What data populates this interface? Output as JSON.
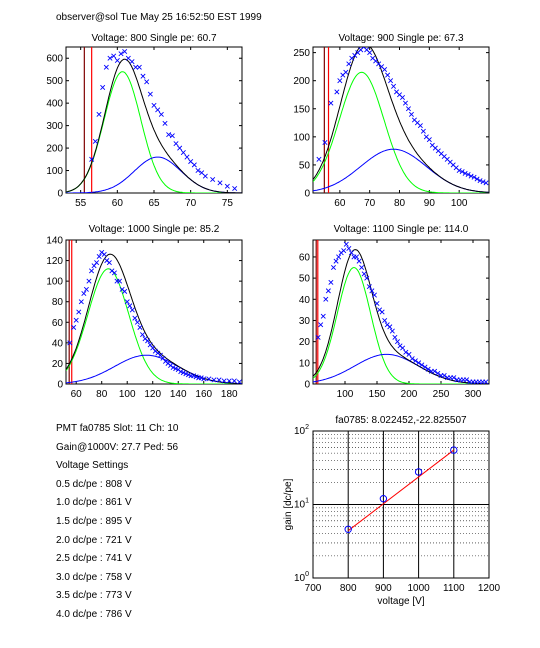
{
  "header": "observer@sol  Tue May 25 16:52:50 EST 1999",
  "info": {
    "pmt_line": "PMT fa0785 Slot: 11 Ch: 10",
    "gain_line": "Gain@1000V: 27.7 Ped: 56",
    "settings_title": "Voltage Settings",
    "settings": [
      "0.5 dc/pe : 808 V",
      "1.0 dc/pe : 861 V",
      "1.5 dc/pe : 895 V",
      "2.0 dc/pe : 721 V",
      "2.5 dc/pe : 741 V",
      "3.0 dc/pe : 758 V",
      "3.5 dc/pe : 773 V",
      "4.0 dc/pe : 786 V"
    ]
  },
  "colors": {
    "data": "#0000ff",
    "fit_total": "#000000",
    "fit_single": "#00ff00",
    "fit_double": "#0000ff",
    "pedestal": "#ff0000",
    "pedestal_dark": "#800000",
    "gain_line": "#ff0000"
  },
  "chart_data": [
    {
      "type": "scatter",
      "title": "Voltage: 800 Single pe: 60.7",
      "xlim": [
        53,
        77
      ],
      "ylim": [
        0,
        650
      ],
      "xticks": [
        55,
        60,
        65,
        70,
        75
      ],
      "yticks": [
        0,
        100,
        200,
        300,
        400,
        500,
        600
      ],
      "pedestal_x": 56,
      "ped_lines": [
        55.5,
        56.5
      ],
      "gauss1": {
        "a": 540,
        "mu": 60.7,
        "s": 2.5
      },
      "gauss2": {
        "a": 160,
        "mu": 65.5,
        "s": 3.2
      },
      "x": [
        56.5,
        57,
        57.5,
        58,
        58.5,
        59,
        59.5,
        60,
        60.5,
        61,
        61.5,
        62,
        62.5,
        63,
        63.5,
        64,
        64.5,
        65,
        65.5,
        66,
        66.5,
        67,
        67.5,
        68,
        68.5,
        69,
        69.5,
        70,
        70.5,
        71,
        71.5,
        72,
        73,
        74,
        75,
        76
      ],
      "y": [
        150,
        230,
        350,
        470,
        560,
        600,
        610,
        590,
        620,
        630,
        600,
        585,
        560,
        560,
        520,
        495,
        440,
        390,
        370,
        350,
        310,
        260,
        255,
        220,
        200,
        180,
        160,
        140,
        125,
        100,
        90,
        75,
        60,
        45,
        30,
        20
      ]
    },
    {
      "type": "scatter",
      "title": "Voltage: 900 Single pe: 67.3",
      "xlim": [
        51,
        110
      ],
      "ylim": [
        0,
        260
      ],
      "xticks": [
        60,
        70,
        80,
        90,
        100
      ],
      "yticks": [
        0,
        50,
        100,
        150,
        200,
        250
      ],
      "pedestal_x": 56,
      "ped_lines": [
        54.8,
        56.2
      ],
      "gauss1": {
        "a": 215,
        "mu": 67.3,
        "s": 7.5
      },
      "gauss2": {
        "a": 78,
        "mu": 78,
        "s": 11
      },
      "x": [
        53,
        55,
        57,
        59,
        60,
        61,
        62,
        63,
        64,
        65,
        66,
        67,
        68,
        69,
        70,
        71,
        72,
        73,
        74,
        75,
        76,
        77,
        78,
        79,
        80,
        81,
        82,
        83,
        84,
        85,
        86,
        87,
        88,
        89,
        90,
        91,
        92,
        93,
        94,
        95,
        96,
        97,
        98,
        99,
        100,
        101,
        102,
        103,
        104,
        105,
        106,
        107,
        108,
        109
      ],
      "y": [
        60,
        90,
        160,
        180,
        200,
        210,
        215,
        230,
        240,
        245,
        250,
        255,
        260,
        255,
        250,
        240,
        235,
        230,
        225,
        220,
        210,
        200,
        190,
        180,
        175,
        170,
        160,
        150,
        140,
        130,
        125,
        120,
        110,
        100,
        95,
        85,
        80,
        75,
        70,
        65,
        60,
        55,
        50,
        45,
        40,
        38,
        35,
        33,
        30,
        28,
        25,
        22,
        20,
        18
      ]
    },
    {
      "type": "scatter",
      "title": "Voltage: 1000 Single pe: 85.2",
      "xlim": [
        52,
        190
      ],
      "ylim": [
        0,
        140
      ],
      "xticks": [
        60,
        80,
        100,
        120,
        140,
        160,
        180
      ],
      "yticks": [
        0,
        20,
        40,
        60,
        80,
        100,
        120,
        140
      ],
      "pedestal_x": 56,
      "ped_lines": [
        54.5,
        56.5
      ],
      "gauss1": {
        "a": 112,
        "mu": 85.2,
        "s": 16
      },
      "gauss2": {
        "a": 28,
        "mu": 115,
        "s": 25
      },
      "x": [
        55,
        58,
        60,
        62,
        64,
        66,
        68,
        70,
        72,
        74,
        76,
        78,
        80,
        82,
        84,
        86,
        88,
        90,
        92,
        94,
        96,
        98,
        100,
        102,
        104,
        106,
        108,
        110,
        112,
        114,
        116,
        118,
        120,
        122,
        124,
        126,
        128,
        130,
        132,
        134,
        136,
        138,
        140,
        142,
        144,
        146,
        148,
        150,
        152,
        154,
        156,
        158,
        160,
        164,
        168,
        172,
        176,
        180,
        184,
        188
      ],
      "y": [
        40,
        55,
        62,
        70,
        80,
        88,
        92,
        100,
        110,
        115,
        118,
        124,
        128,
        126,
        120,
        118,
        110,
        108,
        100,
        100,
        92,
        90,
        80,
        76,
        72,
        64,
        60,
        55,
        48,
        44,
        42,
        38,
        35,
        32,
        30,
        28,
        25,
        22,
        20,
        18,
        16,
        15,
        14,
        12,
        11,
        10,
        9,
        8,
        8,
        7,
        6,
        6,
        5,
        5,
        4,
        4,
        3,
        3,
        3,
        2
      ]
    },
    {
      "type": "scatter",
      "title": "Voltage: 1100 Single pe: 114.0",
      "xlim": [
        50,
        325
      ],
      "ylim": [
        0,
        68
      ],
      "xticks": [
        100,
        150,
        200,
        250,
        300
      ],
      "yticks": [
        0,
        10,
        20,
        30,
        40,
        50,
        60
      ],
      "pedestal_x": 56,
      "ped_lines": [
        55,
        57.5
      ],
      "gauss1": {
        "a": 55,
        "mu": 114,
        "s": 26
      },
      "gauss2": {
        "a": 14,
        "mu": 165,
        "s": 50
      },
      "x": [
        58,
        62,
        66,
        70,
        74,
        78,
        82,
        86,
        90,
        94,
        98,
        102,
        106,
        110,
        114,
        118,
        122,
        126,
        130,
        134,
        138,
        142,
        146,
        150,
        154,
        158,
        162,
        166,
        170,
        174,
        178,
        182,
        186,
        190,
        195,
        200,
        205,
        210,
        215,
        220,
        225,
        230,
        235,
        240,
        245,
        250,
        255,
        260,
        265,
        270,
        275,
        280,
        285,
        290,
        295,
        300,
        305,
        310,
        315,
        320
      ],
      "y": [
        22,
        28,
        32,
        40,
        44,
        48,
        55,
        58,
        60,
        62,
        63,
        66,
        64,
        62,
        60,
        60,
        58,
        55,
        52,
        50,
        46,
        44,
        42,
        38,
        35,
        34,
        30,
        28,
        27,
        25,
        22,
        20,
        18,
        17,
        15,
        14,
        12,
        11,
        10,
        9,
        8,
        7,
        6,
        6,
        5,
        4,
        4,
        3,
        3,
        3,
        2,
        2,
        2,
        2,
        1,
        1,
        1,
        1,
        1,
        1
      ]
    },
    {
      "type": "line",
      "title": "fa0785: 8.022452,-22.825507",
      "xlabel": "voltage [V]",
      "ylabel": "gain [dc/pe]",
      "xlim": [
        700,
        1200
      ],
      "ylim": [
        1,
        100
      ],
      "yscale": "log",
      "xticks": [
        700,
        800,
        900,
        1000,
        1100,
        1200
      ],
      "grid": true,
      "x": [
        800,
        900,
        1000,
        1100
      ],
      "y": [
        4.6,
        12.0,
        27.7,
        55.0
      ],
      "fit_x": [
        800,
        1100
      ],
      "fit_y": [
        4.4,
        55.0
      ]
    }
  ]
}
